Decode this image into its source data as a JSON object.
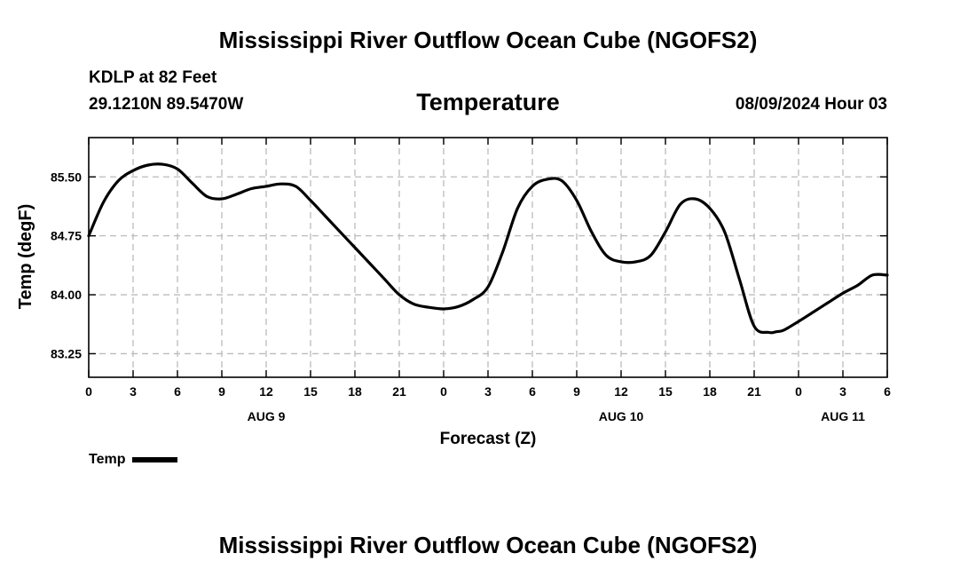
{
  "header": {
    "title": "Mississippi River Outflow Ocean Cube (NGOFS2)",
    "station": "KDLP at 82 Feet",
    "coords": "29.1210N  89.5470W",
    "subtitle": "Temperature",
    "datetime": "08/09/2024 Hour 03"
  },
  "footer": {
    "title": "Mississippi River Outflow Ocean Cube (NGOFS2)"
  },
  "legend": {
    "label": "Temp",
    "color": "#000000"
  },
  "chart_data": {
    "type": "line",
    "title": "Temperature",
    "xlabel": "Forecast (Z)",
    "ylabel": "Temp (degF)",
    "xlim": [
      0,
      54
    ],
    "ylim": [
      82.95,
      86.0
    ],
    "grid": true,
    "x_ticks": [
      0,
      3,
      6,
      9,
      12,
      15,
      18,
      21,
      24,
      27,
      30,
      33,
      36,
      39,
      42,
      45,
      48,
      51,
      54
    ],
    "x_tick_labels": [
      "0",
      "3",
      "6",
      "9",
      "12",
      "15",
      "18",
      "21",
      "0",
      "3",
      "6",
      "9",
      "12",
      "15",
      "18",
      "21",
      "0",
      "3",
      "6"
    ],
    "y_ticks": [
      83.25,
      84.0,
      84.75,
      85.5
    ],
    "y_tick_labels": [
      "83.25",
      "84.00",
      "84.75",
      "85.50"
    ],
    "day_labels": [
      {
        "x": 12,
        "label": "AUG 9"
      },
      {
        "x": 36,
        "label": "AUG 10"
      },
      {
        "x": 51,
        "label": "AUG 11"
      }
    ],
    "series": [
      {
        "name": "Temp",
        "color": "#000000",
        "x": [
          0,
          1,
          2,
          3,
          4,
          5,
          6,
          7,
          8,
          9,
          10,
          11,
          12,
          13,
          14,
          15,
          16,
          17,
          18,
          19,
          20,
          21,
          22,
          23,
          24,
          25,
          26,
          27,
          28,
          29,
          30,
          31,
          32,
          33,
          34,
          35,
          36,
          37,
          38,
          39,
          40,
          41,
          42,
          43,
          44,
          45,
          46,
          46.5,
          47,
          48,
          49,
          50,
          51,
          52,
          53,
          54
        ],
        "values": [
          84.75,
          85.18,
          85.45,
          85.58,
          85.65,
          85.66,
          85.6,
          85.42,
          85.25,
          85.22,
          85.28,
          85.35,
          85.38,
          85.41,
          85.38,
          85.2,
          85.0,
          84.8,
          84.6,
          84.4,
          84.2,
          84.0,
          83.88,
          83.84,
          83.82,
          83.85,
          83.94,
          84.1,
          84.55,
          85.1,
          85.38,
          85.47,
          85.45,
          85.2,
          84.8,
          84.5,
          84.42,
          84.42,
          84.5,
          84.8,
          85.15,
          85.22,
          85.1,
          84.8,
          84.2,
          83.6,
          83.52,
          83.53,
          83.55,
          83.66,
          83.78,
          83.9,
          84.02,
          84.12,
          84.25,
          84.25
        ]
      }
    ]
  }
}
